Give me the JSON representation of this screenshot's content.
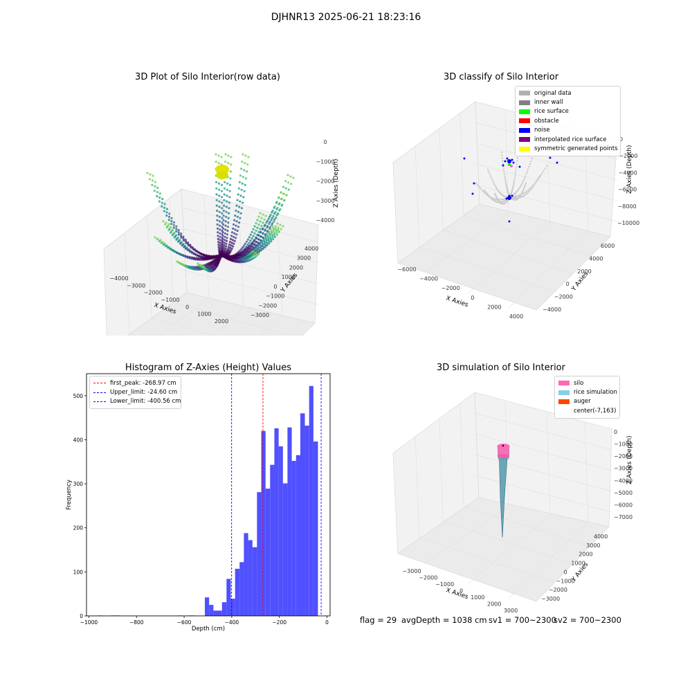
{
  "figure": {
    "suptitle": "DJHNR13 2025-06-21 18:23:16"
  },
  "panels": {
    "raw": {
      "title": "3D Plot of Silo Interior(row data)",
      "xlabel": "X Axies",
      "ylabel": "Y Axies",
      "zlabel": "Z Axies (Depth)",
      "xticks": [
        "−4000",
        "−3000",
        "−2000",
        "−1000",
        "0",
        "1000",
        "2000"
      ],
      "yticks": [
        "−3000",
        "−2000",
        "−1000",
        "0",
        "1000",
        "2000",
        "3000",
        "4000"
      ],
      "zticks": [
        "0",
        "−1000",
        "−2000",
        "−3000",
        "−4000"
      ]
    },
    "classify": {
      "title": "3D classify of Silo Interior",
      "xlabel": "X Axies",
      "ylabel": "Y Axies",
      "zlabel": "Z Axies (Depth)",
      "xticks": [
        "−6000",
        "−4000",
        "−2000",
        "0",
        "2000",
        "4000"
      ],
      "yticks": [
        "−4000",
        "−2000",
        "0",
        "2000",
        "4000",
        "6000"
      ],
      "zticks": [
        "0",
        "−2000",
        "−4000",
        "−6000",
        "−8000",
        "−10000"
      ],
      "legend": [
        {
          "label": "original data",
          "color": "#b0b0b0"
        },
        {
          "label": "inner wall",
          "color": "#808080"
        },
        {
          "label": "rice surface",
          "color": "#00ff00"
        },
        {
          "label": "obstacle",
          "color": "#ff0000"
        },
        {
          "label": "noise",
          "color": "#0000ff"
        },
        {
          "label": "interpolated rice surface",
          "color": "#800080"
        },
        {
          "label": "symmetric generated points",
          "color": "#ffff00"
        }
      ]
    },
    "simulation": {
      "title": "3D simulation of Silo Interior",
      "xlabel": "X Axies",
      "ylabel": "Y Axies",
      "zlabel": "Z Axies (Depth)",
      "xticks": [
        "−3000",
        "−2000",
        "−1000",
        "0",
        "1000",
        "2000",
        "3000"
      ],
      "yticks": [
        "−3000",
        "−2000",
        "−1000",
        "0",
        "1000",
        "2000",
        "3000",
        "4000"
      ],
      "zticks": [
        "0",
        "−1000",
        "−2000",
        "−3000",
        "−4000",
        "−5000",
        "−6000",
        "−7000"
      ],
      "legend": [
        {
          "label": "silo",
          "color": "#ff69b4"
        },
        {
          "label": "rice simulation",
          "color": "#87ceeb"
        },
        {
          "label": "auger",
          "color": "#ff4500"
        },
        {
          "label": "center(-7,163)",
          "color": "#ffffff"
        }
      ]
    }
  },
  "footer": {
    "flag": "flag = 29",
    "avg": "avgDepth = 1038 cm",
    "sv1": "sv1 = 700~2300",
    "sv2": "sv2 = 700~2300"
  },
  "chart_data": {
    "type": "bar",
    "title": "Histogram of Z-Axies (Height) Values",
    "xlabel": "Depth (cm)",
    "ylabel": "Frequency",
    "xlim": [
      -1010,
      13
    ],
    "ylim": [
      0,
      550
    ],
    "xticks": [
      -1000,
      -800,
      -600,
      -400,
      -200,
      0
    ],
    "xtick_labels": [
      "−1000",
      "−800",
      "−600",
      "−400",
      "−200",
      "0"
    ],
    "yticks": [
      0,
      100,
      200,
      300,
      400,
      500
    ],
    "bar_color": "#5050ff",
    "bins": [
      {
        "x0": -962,
        "x1": -944,
        "v": 1
      },
      {
        "x0": -907,
        "x1": -872,
        "v": 1
      },
      {
        "x0": -627,
        "x1": -608,
        "v": 1
      },
      {
        "x0": -587,
        "x1": -556,
        "v": 1
      },
      {
        "x0": -513,
        "x1": -495,
        "v": 42
      },
      {
        "x0": -495,
        "x1": -477,
        "v": 25
      },
      {
        "x0": -477,
        "x1": -441,
        "v": 12
      },
      {
        "x0": -441,
        "x1": -422,
        "v": 31
      },
      {
        "x0": -422,
        "x1": -404,
        "v": 84
      },
      {
        "x0": -404,
        "x1": -386,
        "v": 39
      },
      {
        "x0": -386,
        "x1": -367,
        "v": 107
      },
      {
        "x0": -367,
        "x1": -349,
        "v": 122
      },
      {
        "x0": -349,
        "x1": -331,
        "v": 188
      },
      {
        "x0": -331,
        "x1": -313,
        "v": 172
      },
      {
        "x0": -313,
        "x1": -294,
        "v": 156
      },
      {
        "x0": -294,
        "x1": -276,
        "v": 281
      },
      {
        "x0": -276,
        "x1": -258,
        "v": 420
      },
      {
        "x0": -258,
        "x1": -239,
        "v": 289
      },
      {
        "x0": -239,
        "x1": -221,
        "v": 343
      },
      {
        "x0": -221,
        "x1": -203,
        "v": 426
      },
      {
        "x0": -203,
        "x1": -185,
        "v": 385
      },
      {
        "x0": -185,
        "x1": -166,
        "v": 301
      },
      {
        "x0": -166,
        "x1": -148,
        "v": 428
      },
      {
        "x0": -148,
        "x1": -130,
        "v": 352
      },
      {
        "x0": -130,
        "x1": -112,
        "v": 365
      },
      {
        "x0": -112,
        "x1": -93,
        "v": 460
      },
      {
        "x0": -93,
        "x1": -75,
        "v": 432
      },
      {
        "x0": -75,
        "x1": -57,
        "v": 522
      },
      {
        "x0": -57,
        "x1": -38,
        "v": 396
      }
    ],
    "vlines": [
      {
        "label": "first_peak: -268.97 cm",
        "x": -268.97,
        "color": "#ff0000"
      },
      {
        "label": "Upper_limit: -24.60 cm",
        "x": -24.6,
        "color": "#0000ff"
      },
      {
        "label": "Lower_limit: -400.56 cm",
        "x": -400.56,
        "color": "#0000ff"
      }
    ]
  }
}
